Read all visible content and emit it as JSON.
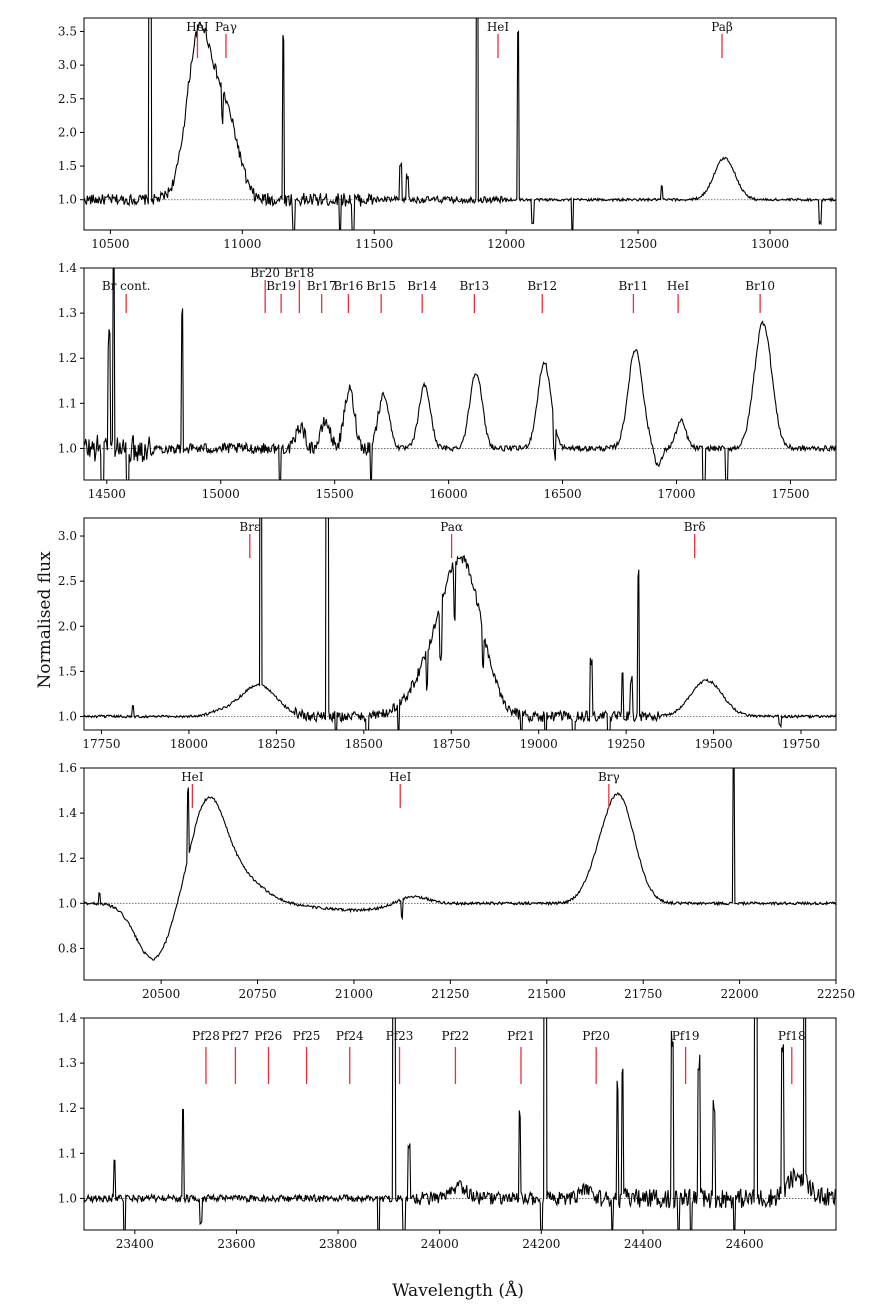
{
  "figure": {
    "ylabel": "Normalised flux",
    "xlabel": "Wavelength (Å)"
  },
  "colors": {
    "spectrum": "#000000",
    "marker": "#e8303a",
    "frame": "#000000",
    "reference": "#555555"
  },
  "chart_data": [
    {
      "type": "line",
      "xlim": [
        10400,
        13250
      ],
      "ylim": [
        0.55,
        3.7
      ],
      "xticks": [
        10500,
        11000,
        11500,
        12000,
        12500,
        13000
      ],
      "yticks": [
        1.0,
        1.5,
        2.0,
        2.5,
        3.0,
        3.5
      ],
      "lines": [
        {
          "label": "HeI",
          "x": 10830
        },
        {
          "label": "Paγ",
          "x": 10938
        },
        {
          "label": "HeI",
          "x": 11969
        },
        {
          "label": "Paβ",
          "x": 12818
        }
      ],
      "features": [
        {
          "c": 10855,
          "h": 2.15,
          "w": 55
        },
        {
          "c": 10820,
          "h": 0.6,
          "w": 35
        },
        {
          "c": 10945,
          "h": 0.75,
          "w": 35
        },
        {
          "c": 10990,
          "h": 0.25,
          "w": 30
        },
        {
          "c": 12828,
          "h": 0.62,
          "w": 40
        },
        {
          "c": 10650,
          "h": 6.0,
          "w": 3
        },
        {
          "c": 11155,
          "h": 2.45,
          "w": 3
        },
        {
          "c": 11600,
          "h": 0.5,
          "w": 3
        },
        {
          "c": 11625,
          "h": 0.35,
          "w": 3
        },
        {
          "c": 11890,
          "h": 6.0,
          "w": 3
        },
        {
          "c": 12045,
          "h": 2.5,
          "w": 3
        },
        {
          "c": 12590,
          "h": 0.2,
          "w": 3
        },
        {
          "c": 11195,
          "h": -0.5,
          "w": 3
        },
        {
          "c": 11370,
          "h": -0.45,
          "w": 3
        },
        {
          "c": 11420,
          "h": -0.5,
          "w": 3
        },
        {
          "c": 12100,
          "h": -0.35,
          "w": 3
        },
        {
          "c": 12250,
          "h": -0.5,
          "w": 3
        },
        {
          "c": 10925,
          "h": -0.45,
          "w": 3
        },
        {
          "c": 13190,
          "h": -0.35,
          "w": 3
        }
      ],
      "noise": [
        {
          "from": 10400,
          "to": 11000,
          "amp": 0.08
        },
        {
          "from": 11000,
          "to": 11500,
          "amp": 0.1
        },
        {
          "from": 11500,
          "to": 12000,
          "amp": 0.05
        },
        {
          "from": 12000,
          "to": 13250,
          "amp": 0.02
        }
      ]
    },
    {
      "type": "line",
      "xlim": [
        14400,
        17700
      ],
      "ylim": [
        0.93,
        1.4
      ],
      "xticks": [
        14500,
        15000,
        15500,
        16000,
        16500,
        17000,
        17500
      ],
      "yticks": [
        1.0,
        1.1,
        1.2,
        1.3,
        1.4
      ],
      "lines": [
        {
          "label": "Br cont.",
          "x": 14585,
          "tier": 0
        },
        {
          "label": "Br20",
          "x": 15195,
          "tier": 2
        },
        {
          "label": "Br19",
          "x": 15265,
          "tier": 1
        },
        {
          "label": "Br18",
          "x": 15345,
          "tier": 2
        },
        {
          "label": "Br17",
          "x": 15443,
          "tier": 1
        },
        {
          "label": "Br16",
          "x": 15560,
          "tier": 1
        },
        {
          "label": "Br15",
          "x": 15704,
          "tier": 1
        },
        {
          "label": "Br14",
          "x": 15884,
          "tier": 1
        },
        {
          "label": "Br13",
          "x": 16113,
          "tier": 1
        },
        {
          "label": "Br12",
          "x": 16411,
          "tier": 1
        },
        {
          "label": "Br11",
          "x": 16811,
          "tier": 1
        },
        {
          "label": "HeI",
          "x": 17007,
          "tier": 1
        },
        {
          "label": "Br10",
          "x": 17367,
          "tier": 1
        }
      ],
      "features": [
        {
          "c": 15350,
          "h": 0.05,
          "w": 18
        },
        {
          "c": 15460,
          "h": 0.06,
          "w": 20
        },
        {
          "c": 15565,
          "h": 0.13,
          "w": 22
        },
        {
          "c": 15715,
          "h": 0.12,
          "w": 24
        },
        {
          "c": 15895,
          "h": 0.14,
          "w": 25
        },
        {
          "c": 16120,
          "h": 0.17,
          "w": 27
        },
        {
          "c": 16420,
          "h": 0.19,
          "w": 29
        },
        {
          "c": 16820,
          "h": 0.22,
          "w": 32
        },
        {
          "c": 17020,
          "h": 0.06,
          "w": 22
        },
        {
          "c": 17380,
          "h": 0.28,
          "w": 38
        },
        {
          "c": 14530,
          "h": 0.45,
          "w": 3
        },
        {
          "c": 14510,
          "h": 0.25,
          "w": 3
        },
        {
          "c": 14830,
          "h": 0.3,
          "w": 3
        },
        {
          "c": 14480,
          "h": -0.15,
          "w": 4
        },
        {
          "c": 14590,
          "h": -0.12,
          "w": 4
        },
        {
          "c": 15260,
          "h": -0.1,
          "w": 4
        },
        {
          "c": 15660,
          "h": -0.08,
          "w": 4
        },
        {
          "c": 16465,
          "h": -0.07,
          "w": 3
        },
        {
          "c": 17120,
          "h": -0.12,
          "w": 3
        },
        {
          "c": 17220,
          "h": -0.08,
          "w": 3
        },
        {
          "c": 16920,
          "h": -0.04,
          "w": 15
        }
      ],
      "noise": [
        {
          "from": 14400,
          "to": 14700,
          "amp": 0.03
        },
        {
          "from": 14700,
          "to": 15300,
          "amp": 0.012
        },
        {
          "from": 15300,
          "to": 15700,
          "amp": 0.015
        },
        {
          "from": 15700,
          "to": 17700,
          "amp": 0.006
        }
      ]
    },
    {
      "type": "line",
      "xlim": [
        17700,
        19850
      ],
      "ylim": [
        0.85,
        3.2
      ],
      "xticks": [
        17750,
        18000,
        18250,
        18500,
        18750,
        19000,
        19250,
        19500,
        19750
      ],
      "yticks": [
        1.0,
        1.5,
        2.0,
        2.5,
        3.0
      ],
      "lines": [
        {
          "label": "Brε",
          "x": 18174
        },
        {
          "label": "Paα",
          "x": 18751
        },
        {
          "label": "Brδ",
          "x": 19446
        }
      ],
      "features": [
        {
          "c": 18785,
          "h": 1.55,
          "w": 55
        },
        {
          "c": 18700,
          "h": 0.5,
          "w": 60
        },
        {
          "c": 18200,
          "h": 0.35,
          "w": 50
        },
        {
          "c": 19480,
          "h": 0.4,
          "w": 45
        },
        {
          "c": 18100,
          "h": 0.05,
          "w": 40
        },
        {
          "c": 18205,
          "h": 5.0,
          "w": 2
        },
        {
          "c": 18395,
          "h": 5.0,
          "w": 2
        },
        {
          "c": 19285,
          "h": 1.6,
          "w": 2
        },
        {
          "c": 19150,
          "h": 0.6,
          "w": 2
        },
        {
          "c": 19240,
          "h": 0.5,
          "w": 2
        },
        {
          "c": 19265,
          "h": 0.4,
          "w": 2
        },
        {
          "c": 17840,
          "h": 0.12,
          "w": 3
        },
        {
          "c": 18420,
          "h": -0.3,
          "w": 3
        },
        {
          "c": 18510,
          "h": -0.3,
          "w": 3
        },
        {
          "c": 18600,
          "h": -0.3,
          "w": 3
        },
        {
          "c": 18680,
          "h": -0.4,
          "w": 3
        },
        {
          "c": 18720,
          "h": -0.6,
          "w": 3
        },
        {
          "c": 18760,
          "h": -0.6,
          "w": 3
        },
        {
          "c": 18840,
          "h": -0.4,
          "w": 3
        },
        {
          "c": 18950,
          "h": -0.3,
          "w": 3
        },
        {
          "c": 19020,
          "h": -0.3,
          "w": 3
        },
        {
          "c": 19100,
          "h": -0.3,
          "w": 3
        },
        {
          "c": 19200,
          "h": -0.3,
          "w": 3
        },
        {
          "c": 19690,
          "h": -0.1,
          "w": 3
        }
      ],
      "noise": [
        {
          "from": 17700,
          "to": 18300,
          "amp": 0.015
        },
        {
          "from": 18300,
          "to": 19350,
          "amp": 0.06
        },
        {
          "from": 19350,
          "to": 19850,
          "amp": 0.015
        }
      ]
    },
    {
      "type": "line",
      "xlim": [
        20300,
        22250
      ],
      "ylim": [
        0.66,
        1.6
      ],
      "xticks": [
        20500,
        20750,
        21000,
        21250,
        21500,
        21750,
        22000,
        22250
      ],
      "yticks": [
        0.8,
        1.0,
        1.2,
        1.4,
        1.6
      ],
      "lines": [
        {
          "label": "HeI",
          "x": 20581
        },
        {
          "label": "HeI",
          "x": 21120
        },
        {
          "label": "Brγ",
          "x": 21661
        }
      ],
      "features": [
        {
          "c": 20620,
          "h": 0.42,
          "w": 45
        },
        {
          "c": 20700,
          "h": 0.12,
          "w": 60
        },
        {
          "c": 20480,
          "h": -0.25,
          "w": 45
        },
        {
          "c": 21685,
          "h": 0.48,
          "w": 42
        },
        {
          "c": 21620,
          "h": 0.05,
          "w": 30
        },
        {
          "c": 21150,
          "h": 0.04,
          "w": 40
        },
        {
          "c": 21000,
          "h": -0.03,
          "w": 100
        },
        {
          "c": 21985,
          "h": 0.65,
          "w": 2
        },
        {
          "c": 20570,
          "h": 0.3,
          "w": 2
        },
        {
          "c": 21125,
          "h": -0.08,
          "w": 2
        },
        {
          "c": 20340,
          "h": 0.05,
          "w": 2
        }
      ],
      "noise": [
        {
          "from": 20300,
          "to": 22250,
          "amp": 0.006
        }
      ]
    },
    {
      "type": "line",
      "xlim": [
        23300,
        24780
      ],
      "ylim": [
        0.93,
        1.4
      ],
      "xticks": [
        23400,
        23600,
        23800,
        24000,
        24200,
        24400,
        24600
      ],
      "yticks": [
        1.0,
        1.1,
        1.2,
        1.3,
        1.4
      ],
      "lines": [
        {
          "label": "Pf28",
          "x": 23540
        },
        {
          "label": "Pf27",
          "x": 23598
        },
        {
          "label": "Pf26",
          "x": 23663
        },
        {
          "label": "Pf25",
          "x": 23738
        },
        {
          "label": "Pf24",
          "x": 23823
        },
        {
          "label": "Pf23",
          "x": 23921
        },
        {
          "label": "Pf22",
          "x": 24031
        },
        {
          "label": "Pf21",
          "x": 24160
        },
        {
          "label": "Pf20",
          "x": 24308
        },
        {
          "label": "Pf19",
          "x": 24484
        },
        {
          "label": "Pf18",
          "x": 24693
        }
      ],
      "features": [
        {
          "c": 23360,
          "h": 0.09,
          "w": 2
        },
        {
          "c": 23495,
          "h": 0.2,
          "w": 2
        },
        {
          "c": 23910,
          "h": 0.9,
          "w": 2
        },
        {
          "c": 23940,
          "h": 0.12,
          "w": 2
        },
        {
          "c": 24158,
          "h": 0.18,
          "w": 2
        },
        {
          "c": 24208,
          "h": 1.2,
          "w": 2
        },
        {
          "c": 24350,
          "h": 0.25,
          "w": 2
        },
        {
          "c": 24360,
          "h": 0.28,
          "w": 2
        },
        {
          "c": 24458,
          "h": 0.35,
          "w": 2
        },
        {
          "c": 24510,
          "h": 0.3,
          "w": 2
        },
        {
          "c": 24540,
          "h": 0.2,
          "w": 2
        },
        {
          "c": 24622,
          "h": 1.0,
          "w": 2
        },
        {
          "c": 24675,
          "h": 0.32,
          "w": 2
        },
        {
          "c": 24718,
          "h": 1.0,
          "w": 2
        },
        {
          "c": 24705,
          "h": 0.05,
          "w": 20
        },
        {
          "c": 24040,
          "h": 0.025,
          "w": 15
        },
        {
          "c": 24290,
          "h": 0.02,
          "w": 12
        },
        {
          "c": 23380,
          "h": -0.12,
          "w": 2
        },
        {
          "c": 23530,
          "h": -0.05,
          "w": 2
        },
        {
          "c": 23880,
          "h": -0.12,
          "w": 2
        },
        {
          "c": 23930,
          "h": -0.1,
          "w": 2
        },
        {
          "c": 24200,
          "h": -0.12,
          "w": 2
        },
        {
          "c": 24340,
          "h": -0.08,
          "w": 2
        },
        {
          "c": 24470,
          "h": -0.1,
          "w": 2
        },
        {
          "c": 24495,
          "h": -0.12,
          "w": 2
        },
        {
          "c": 24580,
          "h": -0.08,
          "w": 2
        }
      ],
      "noise": [
        {
          "from": 23300,
          "to": 23950,
          "amp": 0.008
        },
        {
          "from": 23950,
          "to": 24300,
          "amp": 0.015
        },
        {
          "from": 24300,
          "to": 24780,
          "amp": 0.022
        }
      ]
    }
  ]
}
